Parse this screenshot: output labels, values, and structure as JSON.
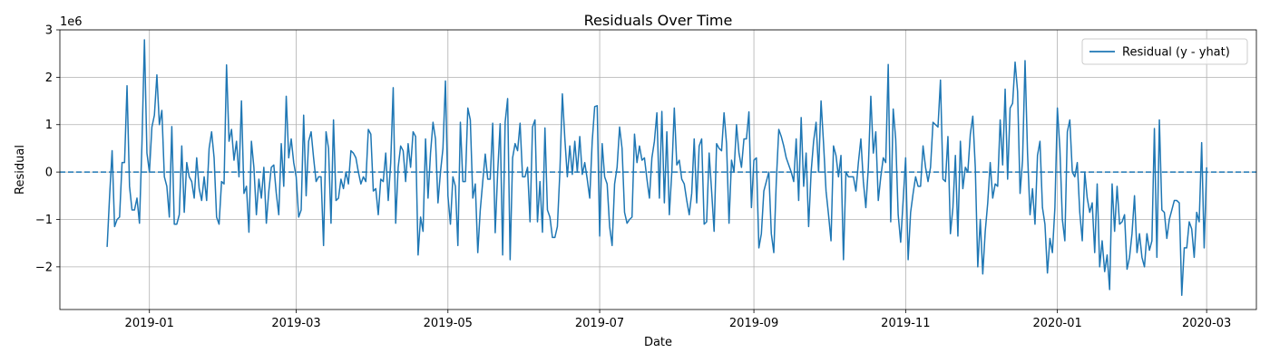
{
  "chart_data": {
    "type": "line",
    "title": "Residuals Over Time",
    "xlabel": "Date",
    "ylabel": "Residual",
    "y_offset_text": "1e6",
    "y_scale": 1000000,
    "xlim": [
      "2018-11-26",
      "2020-03-21"
    ],
    "ylim": [
      -2900000,
      3000000
    ],
    "x_ticks": [
      {
        "date": "2019-01-01",
        "label": "2019-01"
      },
      {
        "date": "2019-03-01",
        "label": "2019-03"
      },
      {
        "date": "2019-05-01",
        "label": "2019-05"
      },
      {
        "date": "2019-07-01",
        "label": "2019-07"
      },
      {
        "date": "2019-09-01",
        "label": "2019-09"
      },
      {
        "date": "2019-11-01",
        "label": "2019-11"
      },
      {
        "date": "2020-01-01",
        "label": "2020-01"
      },
      {
        "date": "2020-03-01",
        "label": "2020-03"
      }
    ],
    "y_ticks": [
      {
        "value": -2000000,
        "label": "−2"
      },
      {
        "value": -1000000,
        "label": "−1"
      },
      {
        "value": 0,
        "label": "0"
      },
      {
        "value": 1000000,
        "label": "1"
      },
      {
        "value": 2000000,
        "label": "2"
      },
      {
        "value": 3000000,
        "label": "3"
      }
    ],
    "grid": true,
    "legend_position": "top-right",
    "series": [
      {
        "name": "Residual (y - yhat)",
        "color": "#1f77b4",
        "line_style": "solid",
        "start_date": "2018-12-15",
        "step_days": 1,
        "values": [
          -1580000,
          -500000,
          450000,
          -1150000,
          -1000000,
          -950000,
          200000,
          200000,
          1820000,
          -300000,
          -800000,
          -800000,
          -550000,
          -1080000,
          600000,
          2790000,
          400000,
          0,
          950000,
          1200000,
          2050000,
          1000000,
          1300000,
          -100000,
          -300000,
          -950000,
          960000,
          -1100000,
          -1100000,
          -900000,
          550000,
          -850000,
          200000,
          -100000,
          -200000,
          -550000,
          300000,
          -350000,
          -600000,
          -100000,
          -600000,
          500000,
          850000,
          300000,
          -950000,
          -1100000,
          -200000,
          -250000,
          2260000,
          650000,
          900000,
          250000,
          650000,
          -100000,
          1500000,
          -450000,
          -300000,
          -1270000,
          650000,
          100000,
          -900000,
          -150000,
          -550000,
          100000,
          -1080000,
          -400000,
          100000,
          150000,
          -450000,
          -900000,
          600000,
          -300000,
          1600000,
          300000,
          700000,
          200000,
          -100000,
          -950000,
          -800000,
          1200000,
          -500000,
          650000,
          850000,
          300000,
          -200000,
          -100000,
          -100000,
          -1550000,
          850000,
          500000,
          -1080000,
          1100000,
          -600000,
          -550000,
          -150000,
          -350000,
          0,
          -250000,
          450000,
          400000,
          300000,
          0,
          -250000,
          -100000,
          -200000,
          900000,
          800000,
          -400000,
          -350000,
          -900000,
          -150000,
          -200000,
          400000,
          -600000,
          200000,
          1780000,
          -1080000,
          100000,
          550000,
          450000,
          -200000,
          600000,
          100000,
          850000,
          750000,
          -1750000,
          -950000,
          -1250000,
          700000,
          -550000,
          400000,
          1050000,
          700000,
          -650000,
          0,
          500000,
          1920000,
          -500000,
          -1100000,
          -100000,
          -300000,
          -1550000,
          1050000,
          -200000,
          -200000,
          1350000,
          1100000,
          -550000,
          -250000,
          -1700000,
          -800000,
          -200000,
          380000,
          -150000,
          -150000,
          1030000,
          -1280000,
          0,
          1020000,
          -1750000,
          1050000,
          1550000,
          -1850000,
          300000,
          600000,
          450000,
          1030000,
          -100000,
          -100000,
          100000,
          -1050000,
          950000,
          1100000,
          -1050000,
          -200000,
          -1270000,
          930000,
          -800000,
          -950000,
          -1380000,
          -1380000,
          -1150000,
          0,
          1650000,
          700000,
          -100000,
          550000,
          -50000,
          650000,
          0,
          750000,
          -50000,
          200000,
          -150000,
          -550000,
          650000,
          1380000,
          1400000,
          -1350000,
          600000,
          -100000,
          -250000,
          -1150000,
          -1550000,
          -250000,
          100000,
          950000,
          500000,
          -850000,
          -1080000,
          -1000000,
          -950000,
          800000,
          200000,
          550000,
          250000,
          300000,
          -150000,
          -550000,
          300000,
          650000,
          1250000,
          -550000,
          1280000,
          -650000,
          850000,
          -900000,
          0,
          1350000,
          150000,
          250000,
          -150000,
          -250000,
          -600000,
          -900000,
          -450000,
          700000,
          -650000,
          550000,
          700000,
          -1100000,
          -1050000,
          400000,
          -400000,
          -1250000,
          600000,
          500000,
          450000,
          1250000,
          600000,
          -1080000,
          250000,
          0,
          1000000,
          400000,
          100000,
          700000,
          700000,
          1270000,
          -750000,
          250000,
          300000,
          -1600000,
          -1300000,
          -400000,
          -200000,
          0,
          -1300000,
          -1700000,
          -200000,
          900000,
          750000,
          550000,
          300000,
          150000,
          0,
          -200000,
          700000,
          -600000,
          1150000,
          -300000,
          400000,
          -1150000,
          0,
          650000,
          1050000,
          0,
          1500000,
          600000,
          -400000,
          -900000,
          -1450000,
          550000,
          350000,
          -100000,
          350000,
          -1850000,
          0,
          -100000,
          -100000,
          -100000,
          -400000,
          200000,
          700000,
          -200000,
          -750000,
          100000,
          1600000,
          400000,
          850000,
          -600000,
          -100000,
          300000,
          200000,
          2270000,
          -1050000,
          1330000,
          700000,
          -900000,
          -1480000,
          -600000,
          300000,
          -1850000,
          -850000,
          -450000,
          -100000,
          -300000,
          -300000,
          550000,
          100000,
          -200000,
          100000,
          1050000,
          1000000,
          950000,
          1940000,
          -150000,
          -200000,
          750000,
          -1300000,
          -750000,
          350000,
          -1350000,
          650000,
          -350000,
          100000,
          0,
          800000,
          1180000,
          100000,
          -2000000,
          -1000000,
          -2150000,
          -1250000,
          -650000,
          200000,
          -550000,
          -250000,
          -300000,
          1100000,
          150000,
          1750000,
          -150000,
          1350000,
          1450000,
          2320000,
          1700000,
          -450000,
          250000,
          2350000,
          400000,
          -900000,
          -350000,
          -1100000,
          350000,
          650000,
          -750000,
          -1100000,
          -2130000,
          -1400000,
          -1700000,
          -750000,
          1350000,
          500000,
          -1000000,
          -1450000,
          850000,
          1100000,
          0,
          -100000,
          200000,
          -850000,
          -1450000,
          0,
          -550000,
          -850000,
          -650000,
          -1700000,
          -250000,
          -2000000,
          -1450000,
          -2100000,
          -1750000,
          -2480000,
          -250000,
          -1250000,
          -300000,
          -1100000,
          -1050000,
          -900000,
          -2050000,
          -1800000,
          -1300000,
          -500000,
          -1700000,
          -1300000,
          -1800000,
          -2000000,
          -1300000,
          -1650000,
          -1450000,
          920000,
          -1800000,
          1100000,
          -800000,
          -850000,
          -1400000,
          -1000000,
          -800000,
          -600000,
          -600000,
          -650000,
          -2600000,
          -1600000,
          -1600000,
          -1050000,
          -1200000,
          -1800000,
          -850000,
          -1050000,
          620000,
          -1600000,
          100000
        ]
      },
      {
        "name": "zero-reference",
        "color": "#1f77b4",
        "line_style": "dashed",
        "constant": 0
      }
    ]
  }
}
